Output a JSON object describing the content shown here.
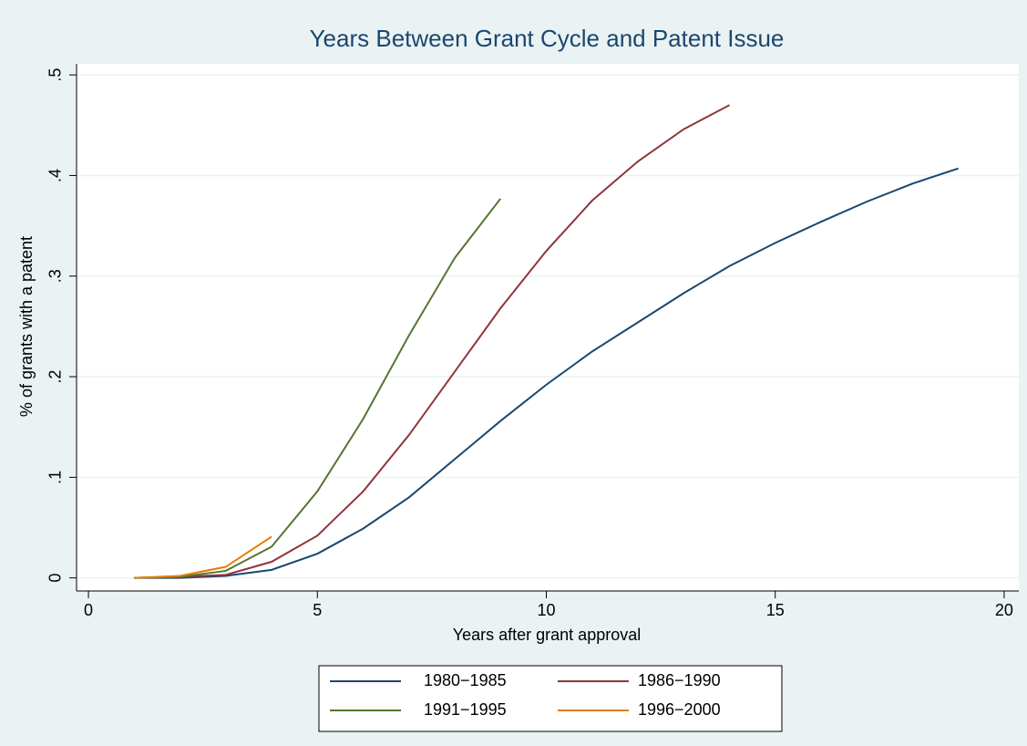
{
  "chart_data": {
    "type": "line",
    "title": "Years Between Grant Cycle and Patent Issue",
    "xlabel": "Years after grant approval",
    "ylabel": "% of grants with a patent",
    "xlim": [
      -0.26,
      20.32
    ],
    "ylim": [
      -0.013,
      0.511
    ],
    "xticks": [
      0,
      5,
      10,
      15,
      20
    ],
    "yticks": [
      0,
      {
        "value": 0.1,
        "label": ".1"
      },
      {
        "value": 0.2,
        "label": ".2"
      },
      {
        "value": 0.3,
        "label": ".3"
      },
      {
        "value": 0.4,
        "label": ".4"
      },
      {
        "value": 0.5,
        "label": ".5"
      }
    ],
    "grid": true,
    "series": [
      {
        "name": "1980−1985",
        "color": "#1a476f",
        "x": [
          1,
          2,
          3,
          4,
          5,
          6,
          7,
          8,
          9,
          10,
          11,
          12,
          13,
          14,
          15,
          16,
          17,
          18,
          19
        ],
        "values": [
          0,
          0,
          0.002,
          0.008,
          0.024,
          0.049,
          0.08,
          0.118,
          0.156,
          0.192,
          0.225,
          0.254,
          0.283,
          0.31,
          0.333,
          0.354,
          0.374,
          0.392,
          0.407
        ]
      },
      {
        "name": "1986−1990",
        "color": "#90353b",
        "x": [
          1,
          2,
          3,
          4,
          5,
          6,
          7,
          8,
          9,
          10,
          11,
          12,
          13,
          14
        ],
        "values": [
          0,
          0.001,
          0.003,
          0.016,
          0.042,
          0.086,
          0.142,
          0.205,
          0.268,
          0.325,
          0.375,
          0.414,
          0.446,
          0.47
        ]
      },
      {
        "name": "1991−1995",
        "color": "#55752f",
        "x": [
          1,
          2,
          3,
          4,
          5,
          6,
          7,
          8,
          9
        ],
        "values": [
          0,
          0.001,
          0.007,
          0.031,
          0.086,
          0.158,
          0.241,
          0.318,
          0.377
        ]
      },
      {
        "name": "1996−2000",
        "color": "#e37e00",
        "x": [
          1,
          2,
          3,
          4
        ],
        "values": [
          0,
          0.002,
          0.011,
          0.041
        ]
      }
    ]
  }
}
